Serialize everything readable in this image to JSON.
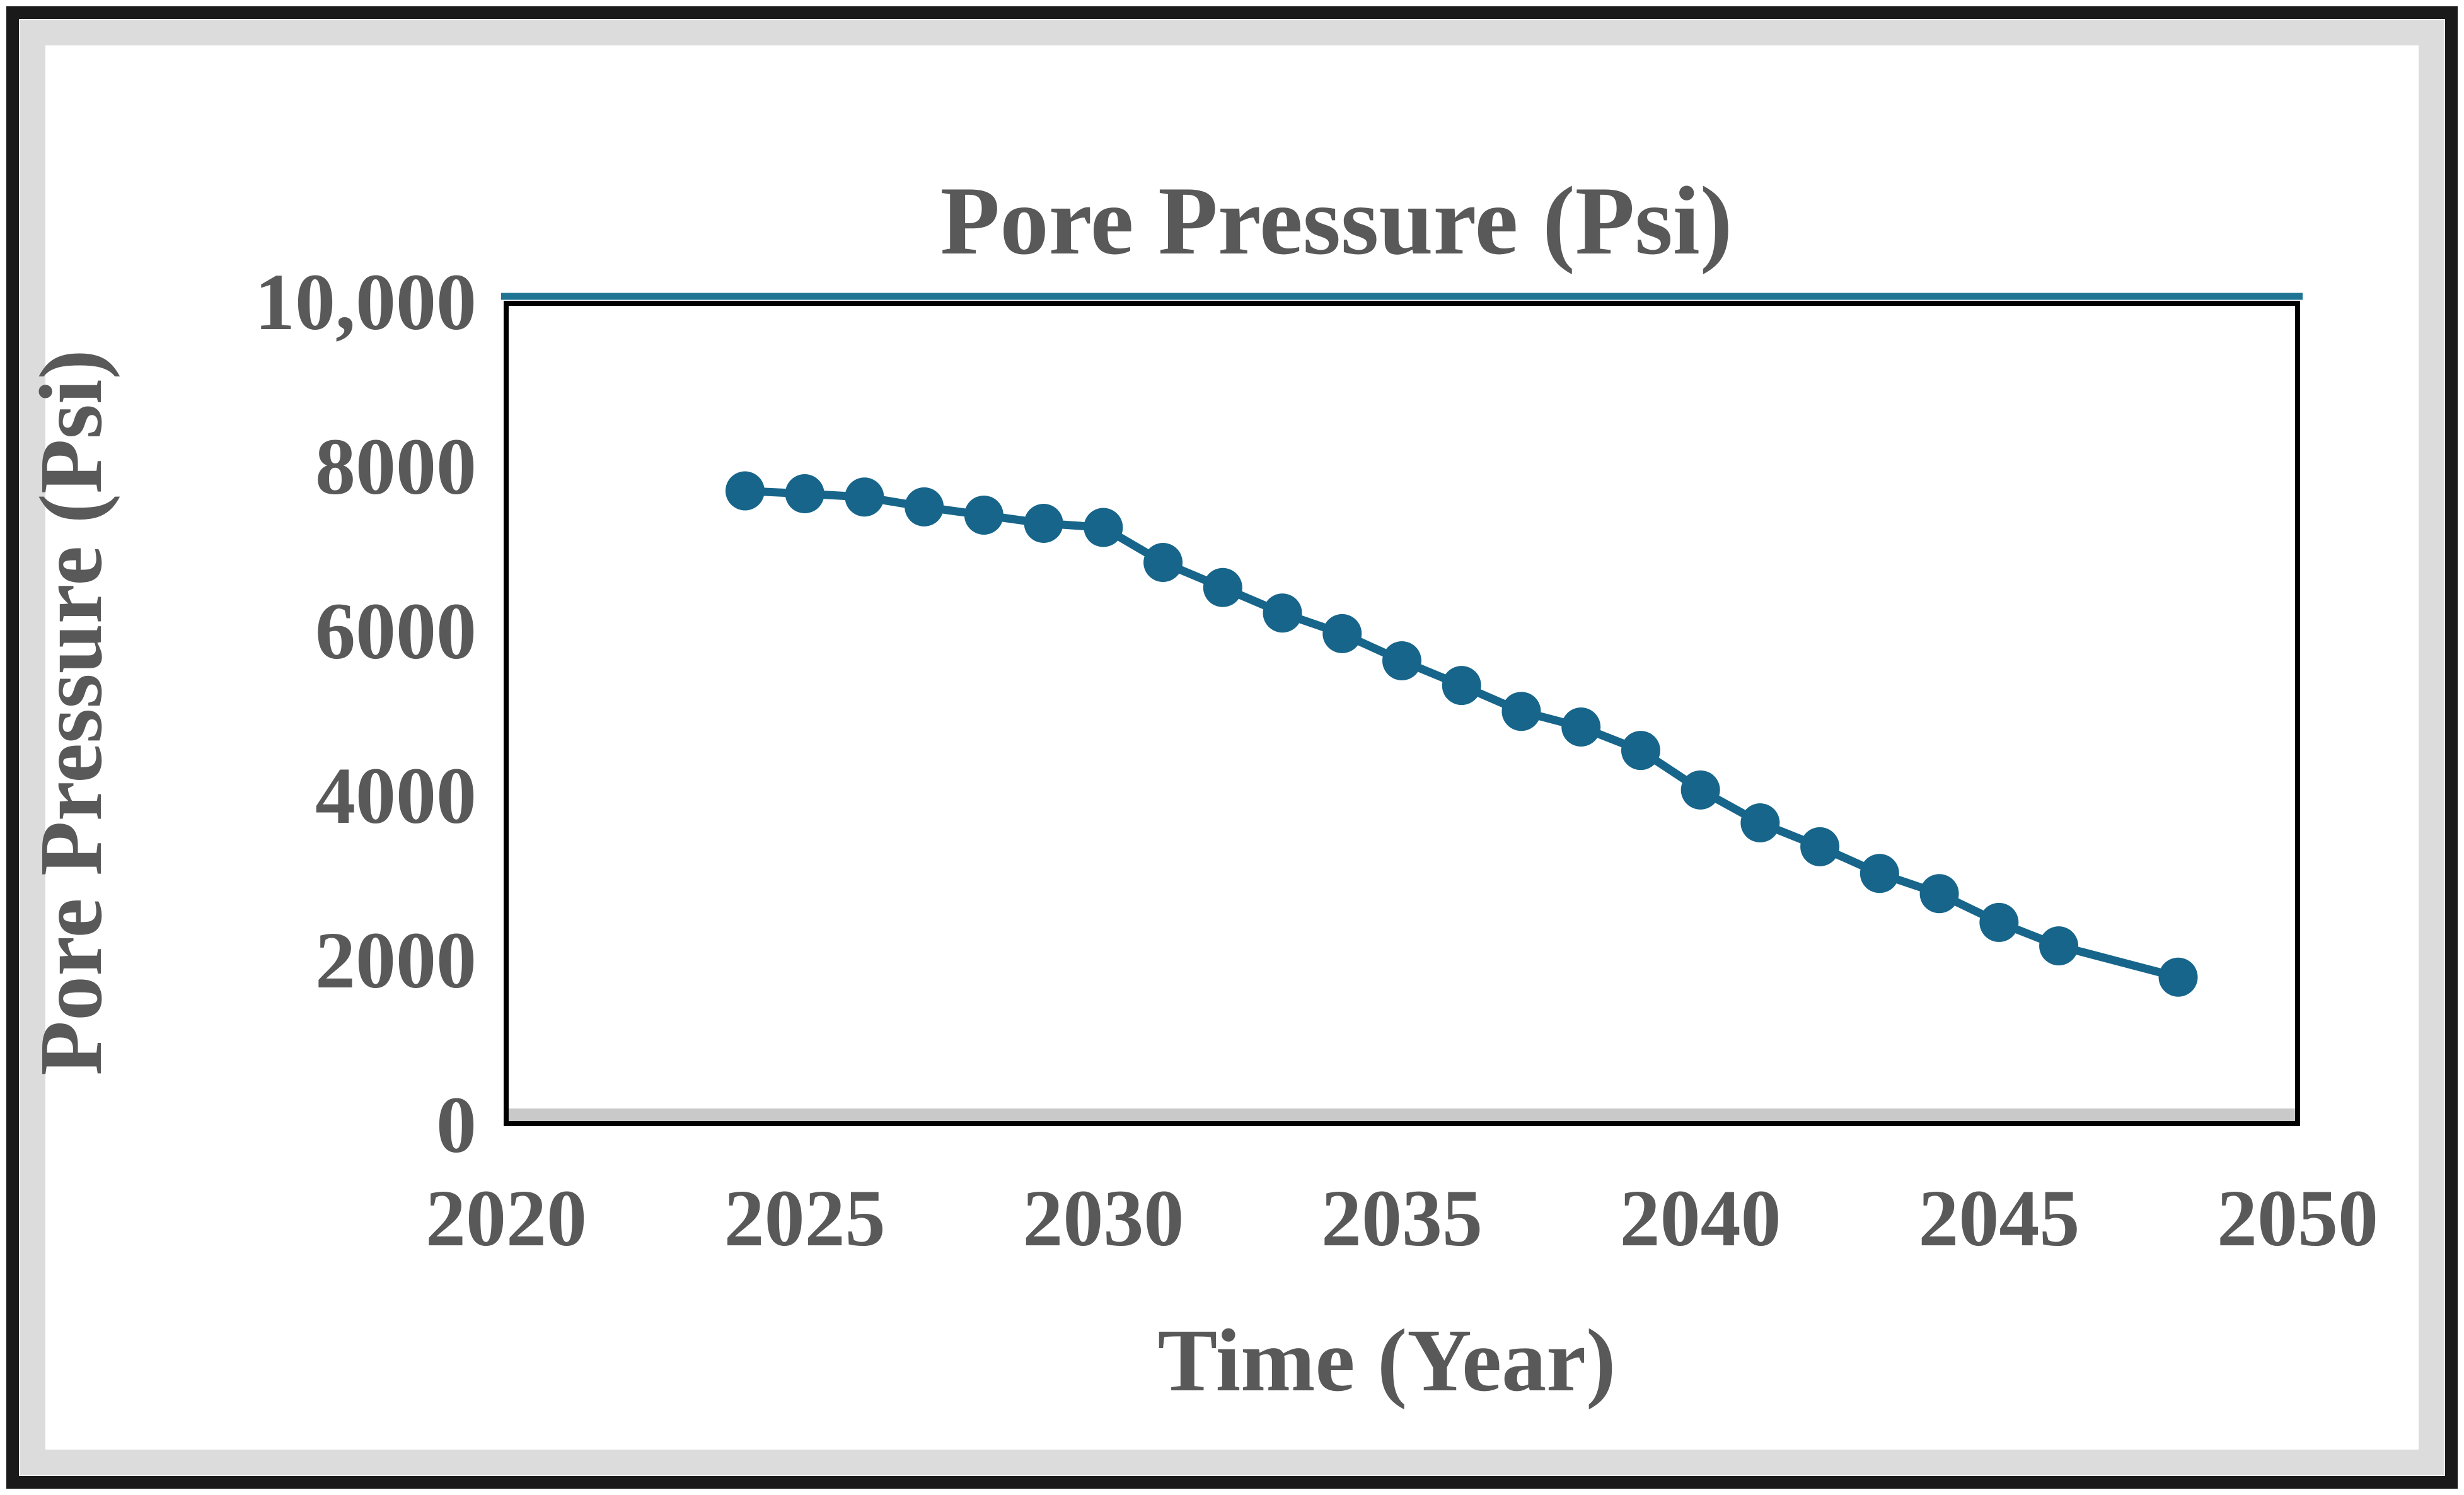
{
  "figure": {
    "background_color": "#ffffff",
    "frame_border_color": "#1a1a1a",
    "matte_color": "#dcdcdc"
  },
  "chart_data": {
    "type": "line",
    "title": "Pore Pressure (Psi)",
    "xlabel": "Time (Year)",
    "ylabel": "Pore Pressure (Psi)",
    "xlim": [
      2020,
      2050
    ],
    "ylim": [
      0,
      10000
    ],
    "grid": false,
    "legend": "none",
    "text_color": "#595959",
    "plot_background": "#ffffff",
    "plot_border_color": "#000000",
    "plot_top_accent_color": "#1f7494",
    "plot_bottom_shadow_color": "#c9c9c9",
    "x_tick_labels": [
      "2020",
      "2025",
      "2030",
      "2035",
      "2040",
      "2045",
      "2050"
    ],
    "x_tick_values": [
      2020,
      2025,
      2030,
      2035,
      2040,
      2045,
      2050
    ],
    "y_tick_labels": [
      "0",
      "2000",
      "4000",
      "6000",
      "8000",
      "10,000"
    ],
    "y_tick_values": [
      0,
      2000,
      4000,
      6000,
      8000,
      10000
    ],
    "series": [
      {
        "name": "Pore Pressure",
        "color": "#17658a",
        "marker": "circle",
        "x": [
          2024,
          2025,
          2026,
          2027,
          2028,
          2029,
          2030,
          2031,
          2032,
          2033,
          2034,
          2035,
          2036,
          2037,
          2038,
          2039,
          2040,
          2041,
          2042,
          2043,
          2044,
          2045,
          2046,
          2048
        ],
        "y": [
          7690,
          7655,
          7615,
          7495,
          7395,
          7295,
          7245,
          6820,
          6515,
          6205,
          5955,
          5625,
          5325,
          5010,
          4820,
          4535,
          4055,
          3655,
          3365,
          3040,
          2795,
          2445,
          2160,
          1780
        ]
      }
    ]
  }
}
